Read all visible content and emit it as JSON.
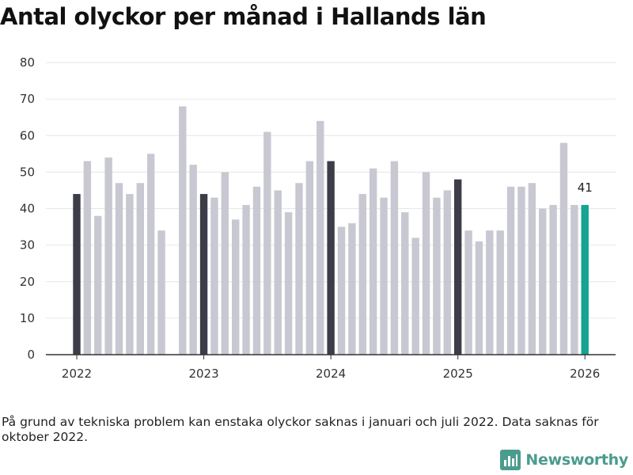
{
  "title": "Antal olyckor per månad i Hallands län",
  "footnote": "På grund av tekniska problem kan enstaka olyckor saknas i januari och juli 2022. Data saknas för oktober 2022.",
  "brand": {
    "name": "Newsworthy",
    "icon": "newsworthy-logo-icon"
  },
  "colors": {
    "january": "#3d3d4a",
    "regular": "#c8c8d2",
    "latest": "#15a393",
    "grid": "#e6e6e6",
    "axis": "#333333"
  },
  "chart_data": {
    "type": "bar",
    "title": "Antal olyckor per månad i Hallands län",
    "xlabel": "",
    "ylabel": "",
    "ylim": [
      0,
      80
    ],
    "yticks": [
      0,
      10,
      20,
      30,
      40,
      50,
      60,
      70,
      80
    ],
    "xticks": [
      {
        "label": "2022",
        "index": 0
      },
      {
        "label": "2023",
        "index": 12
      },
      {
        "label": "2024",
        "index": 24
      },
      {
        "label": "2025",
        "index": 36
      },
      {
        "label": "2026",
        "index": 48
      }
    ],
    "categories": [
      "2022-01",
      "2022-02",
      "2022-03",
      "2022-04",
      "2022-05",
      "2022-06",
      "2022-07",
      "2022-08",
      "2022-09",
      "2022-10",
      "2022-11",
      "2022-12",
      "2023-01",
      "2023-02",
      "2023-03",
      "2023-04",
      "2023-05",
      "2023-06",
      "2023-07",
      "2023-08",
      "2023-09",
      "2023-10",
      "2023-11",
      "2023-12",
      "2024-01",
      "2024-02",
      "2024-03",
      "2024-04",
      "2024-05",
      "2024-06",
      "2024-07",
      "2024-08",
      "2024-09",
      "2024-10",
      "2024-11",
      "2024-12",
      "2025-01",
      "2025-02",
      "2025-03",
      "2025-04",
      "2025-05",
      "2025-06",
      "2025-07",
      "2025-08",
      "2025-09",
      "2025-10",
      "2025-11",
      "2025-12",
      "2026-01"
    ],
    "values": [
      44,
      53,
      38,
      54,
      47,
      44,
      47,
      55,
      34,
      null,
      68,
      52,
      44,
      43,
      50,
      37,
      41,
      46,
      61,
      45,
      39,
      47,
      53,
      64,
      53,
      35,
      36,
      44,
      51,
      43,
      53,
      39,
      32,
      50,
      43,
      45,
      48,
      34,
      31,
      34,
      34,
      46,
      46,
      47,
      40,
      41,
      58,
      41,
      41
    ],
    "highlight_label": "41",
    "grid": true,
    "legend": "none"
  }
}
